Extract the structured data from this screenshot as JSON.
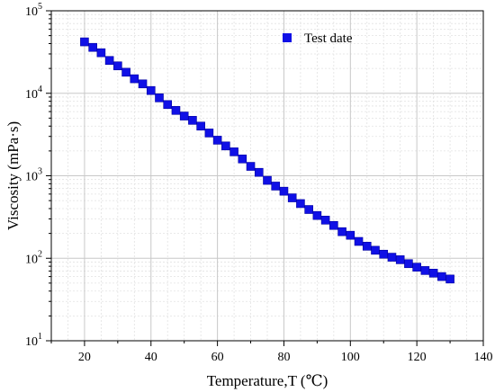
{
  "colors": {
    "marker": "#1010e6",
    "legend_text": "#1a1ad6",
    "axis": "#000000",
    "major_grid": "#c8c8c8",
    "minor_grid": "#e2e2e2"
  },
  "chart_data": {
    "type": "scatter",
    "title": "",
    "xlabel": "Temperature,T (℃)",
    "ylabel": "Viscosity (mPa·s)",
    "xlim": [
      10,
      140
    ],
    "ylim": [
      10,
      100000
    ],
    "y_scale": "log",
    "grid": true,
    "minor_grid": true,
    "legend_position": "top-right",
    "x_ticks": [
      20,
      40,
      60,
      80,
      100,
      120,
      140
    ],
    "x_tick_labels": [
      "20",
      "40",
      "60",
      "80",
      "100",
      "120",
      "140"
    ],
    "y_ticks": [
      10,
      100,
      1000,
      10000,
      100000
    ],
    "y_tick_labels": [
      {
        "base": "10",
        "exp": "1"
      },
      {
        "base": "10",
        "exp": "2"
      },
      {
        "base": "10",
        "exp": "3"
      },
      {
        "base": "10",
        "exp": "4"
      },
      {
        "base": "10",
        "exp": "5"
      }
    ],
    "series": [
      {
        "name": "Test date",
        "marker": "square",
        "points": [
          [
            20,
            42000
          ],
          [
            22.5,
            36000
          ],
          [
            25,
            31000
          ],
          [
            27.5,
            25000
          ],
          [
            30,
            21500
          ],
          [
            32.5,
            18000
          ],
          [
            35,
            15000
          ],
          [
            37.5,
            13000
          ],
          [
            40,
            10800
          ],
          [
            42.5,
            8800
          ],
          [
            45,
            7300
          ],
          [
            47.5,
            6200
          ],
          [
            50,
            5300
          ],
          [
            52.5,
            4700
          ],
          [
            55,
            4000
          ],
          [
            57.5,
            3300
          ],
          [
            60,
            2700
          ],
          [
            62.5,
            2300
          ],
          [
            65,
            1950
          ],
          [
            67.5,
            1600
          ],
          [
            70,
            1300
          ],
          [
            72.5,
            1100
          ],
          [
            75,
            880
          ],
          [
            77.5,
            750
          ],
          [
            80,
            650
          ],
          [
            82.5,
            540
          ],
          [
            85,
            460
          ],
          [
            87.5,
            390
          ],
          [
            90,
            330
          ],
          [
            92.5,
            290
          ],
          [
            95,
            250
          ],
          [
            97.5,
            210
          ],
          [
            100,
            190
          ],
          [
            102.5,
            160
          ],
          [
            105,
            140
          ],
          [
            107.5,
            125
          ],
          [
            110,
            112
          ],
          [
            112.5,
            103
          ],
          [
            115,
            96
          ],
          [
            117.5,
            86
          ],
          [
            120,
            78
          ],
          [
            122.5,
            71
          ],
          [
            125,
            66
          ],
          [
            127.5,
            60
          ],
          [
            130,
            56
          ]
        ]
      }
    ]
  }
}
